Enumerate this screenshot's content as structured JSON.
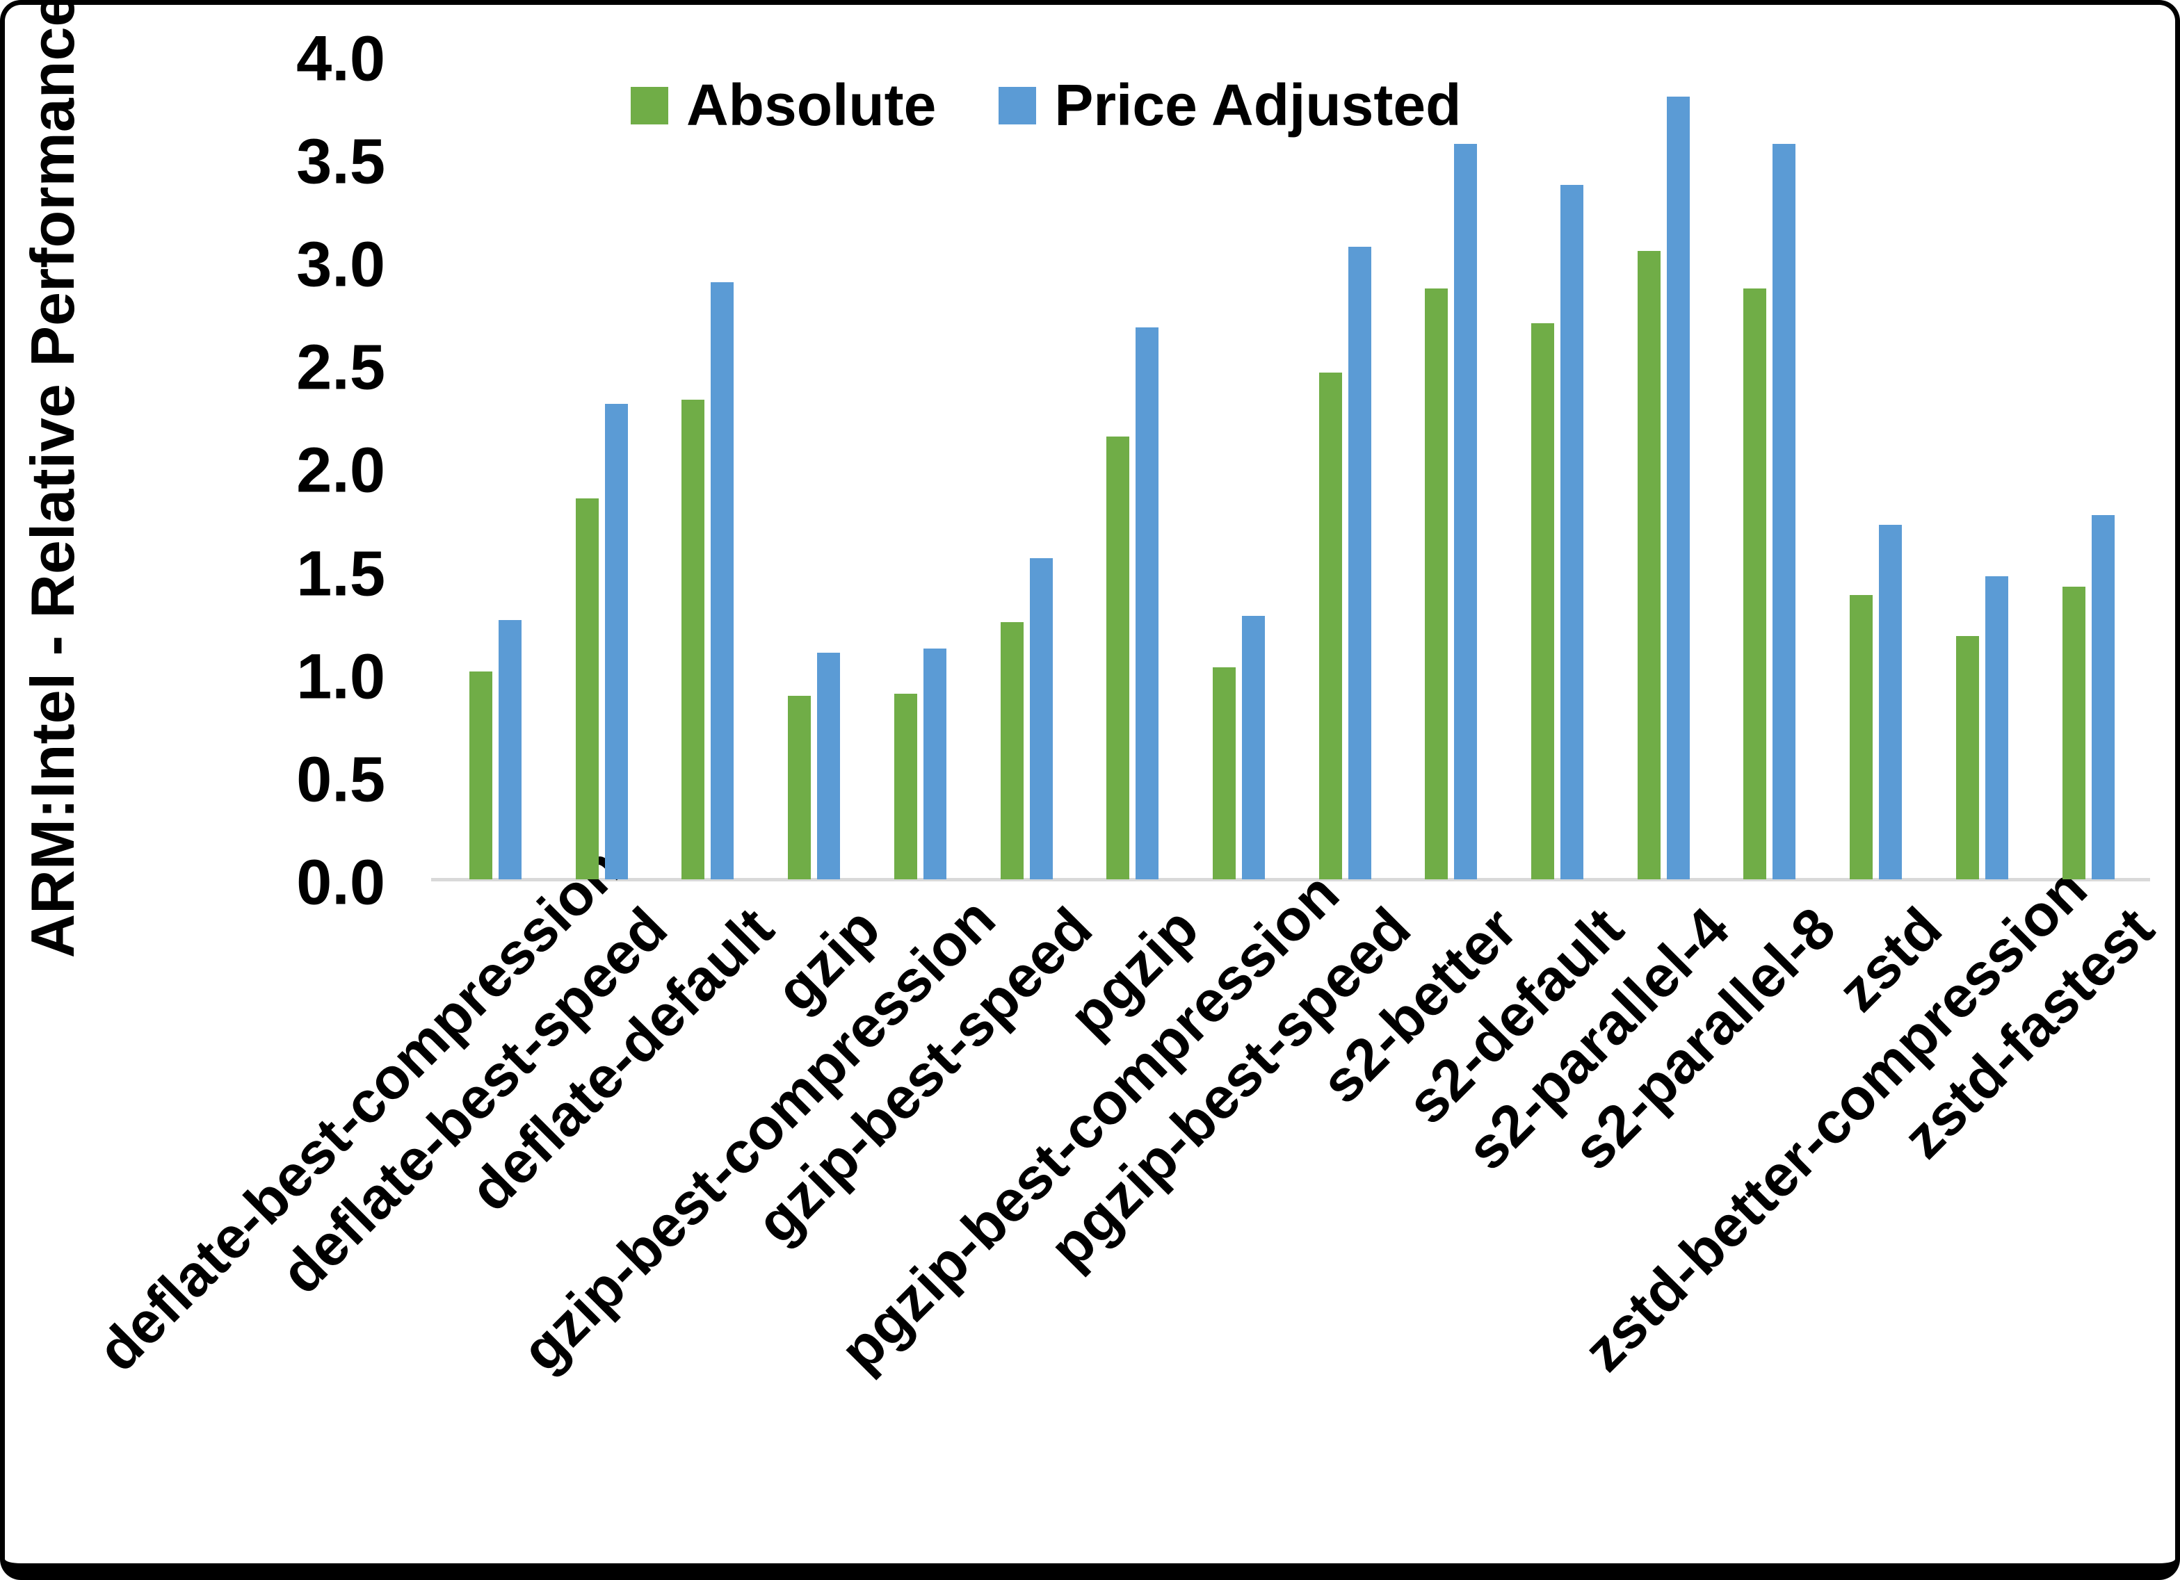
{
  "chart_data": {
    "type": "bar",
    "title": "",
    "xlabel": "",
    "ylabel": "ARM:Intel - Relative Performance",
    "ylim": [
      0.0,
      4.0
    ],
    "ytick_step": 0.5,
    "ytick_labels": [
      "0.0",
      "0.5",
      "1.0",
      "1.5",
      "2.0",
      "2.5",
      "3.0",
      "3.5",
      "4.0"
    ],
    "grid": false,
    "legend_position": "top-center",
    "categories": [
      "deflate-best-compression",
      "deflate-best-speed",
      "deflate-default",
      "gzip",
      "gzip-best-compression",
      "gzip-best-speed",
      "pgzip",
      "pgzip-best-compression",
      "pgzip-best-speed",
      "s2-better",
      "s2-default",
      "s2-parallel-4",
      "s2-parallel-8",
      "zstd",
      "zstd-better-compression",
      "zstd-fastest"
    ],
    "series": [
      {
        "name": "Absolute",
        "color": "#70AD47",
        "values": [
          1.01,
          1.85,
          2.33,
          0.89,
          0.9,
          1.25,
          2.15,
          1.03,
          2.46,
          2.87,
          2.7,
          3.05,
          2.87,
          1.38,
          1.18,
          1.42
        ]
      },
      {
        "name": "Price Adjusted",
        "color": "#5B9BD5",
        "values": [
          1.26,
          2.31,
          2.9,
          1.1,
          1.12,
          1.56,
          2.68,
          1.28,
          3.07,
          3.57,
          3.37,
          3.8,
          3.57,
          1.72,
          1.47,
          1.77
        ]
      }
    ],
    "colors": {
      "axis_line": "#D9D9D9",
      "background": "#FFFFFF",
      "frame_border": "#000000"
    }
  }
}
